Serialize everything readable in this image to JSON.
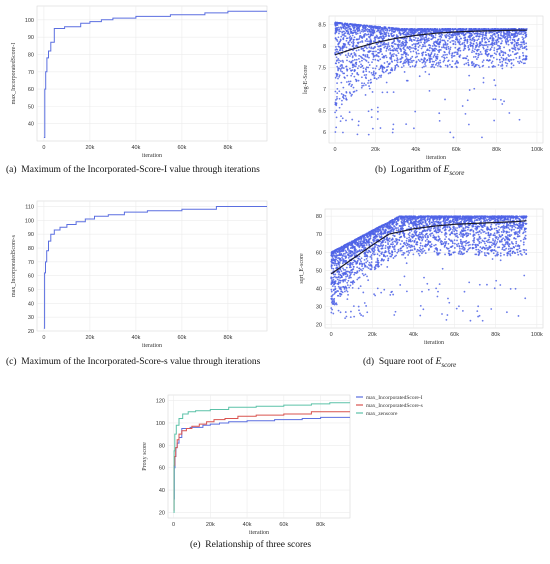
{
  "panels": [
    {
      "id": "a",
      "caption_prefix": "(a)",
      "caption_text": "Maximum of the Incorporated-Score-I value through iterations",
      "chart_data": {
        "type": "line",
        "xlabel": "iteration",
        "ylabel": "max_IncorporatedScore-I",
        "xlim": [
          -3000,
          97000
        ],
        "ylim": [
          30,
          108
        ],
        "x_ticks": [
          0,
          20000,
          40000,
          60000,
          80000
        ],
        "x_tick_labels": [
          "0",
          "20k",
          "40k",
          "60k",
          "80k"
        ],
        "y_ticks": [
          40,
          50,
          60,
          70,
          80,
          90,
          100
        ],
        "grid": true,
        "series": [
          {
            "color": "#5b6fe0",
            "step": true,
            "x": [
              0,
              400,
              800,
              1300,
              2000,
              3000,
              4500,
              6500,
              9000,
              12000,
              16000,
              20000,
              25000,
              30000,
              40000,
              55000,
              70000,
              80000,
              95000
            ],
            "y": [
              32,
              60,
              70,
              78,
              82,
              87,
              95,
              95,
              96,
              96,
              98,
              99,
              100,
              101,
              102,
              103,
              104,
              105,
              105
            ]
          }
        ]
      }
    },
    {
      "id": "b",
      "caption_prefix": "(b)",
      "caption_text": "Logarithm of",
      "caption_math": "E",
      "caption_sub": "score",
      "chart_data": {
        "type": "scatter",
        "xlabel": "iteration",
        "ylabel": "log-E-Score",
        "xlim": [
          -3000,
          103000
        ],
        "ylim": [
          5.75,
          8.7
        ],
        "x_ticks": [
          0,
          20000,
          40000,
          60000,
          80000,
          100000
        ],
        "x_tick_labels": [
          "0",
          "20k",
          "40k",
          "60k",
          "80k",
          "100k"
        ],
        "y_ticks": [
          6,
          6.5,
          7,
          7.5,
          8,
          8.5
        ],
        "grid": true,
        "point_color": "#4f63e6",
        "point_count": 2600,
        "band": {
          "x_max": 95000,
          "top_start": 8.55,
          "top_end": 8.4,
          "bottom_start": 6.2,
          "bottom_end": 7.5,
          "y_floor": 5.85
        },
        "trend": {
          "color": "#1a1a2e",
          "x": [
            0,
            10000,
            20000,
            30000,
            40000,
            50000,
            60000,
            70000,
            80000,
            90000,
            95000
          ],
          "y": [
            7.8,
            7.95,
            8.08,
            8.18,
            8.25,
            8.3,
            8.33,
            8.35,
            8.36,
            8.37,
            8.37
          ]
        }
      }
    },
    {
      "id": "c",
      "caption_prefix": "(c)",
      "caption_text": "Maximum of the Incorporated-Score-s value through iterations",
      "chart_data": {
        "type": "line",
        "xlabel": "iteration",
        "ylabel": "max_IncorporatedScore-s",
        "xlim": [
          -3000,
          97000
        ],
        "ylim": [
          20,
          114
        ],
        "x_ticks": [
          0,
          20000,
          40000,
          60000,
          80000
        ],
        "x_tick_labels": [
          "0",
          "20k",
          "40k",
          "60k",
          "80k"
        ],
        "y_ticks": [
          20,
          30,
          40,
          50,
          60,
          70,
          80,
          90,
          100,
          110
        ],
        "grid": true,
        "series": [
          {
            "color": "#5b6fe0",
            "step": true,
            "x": [
              0,
              300,
              700,
              1200,
              2000,
              3000,
              4500,
              7000,
              10000,
              14000,
              18000,
              22000,
              28000,
              35000,
              45000,
              60000,
              75000,
              95000
            ],
            "y": [
              22,
              62,
              70,
              78,
              85,
              90,
              93,
              95,
              97,
              99,
              101,
              103,
              104,
              106,
              107,
              108,
              110,
              110
            ]
          }
        ]
      }
    },
    {
      "id": "d",
      "caption_prefix": "(d)",
      "caption_text": "Square root of",
      "caption_math": "E",
      "caption_sub": "score",
      "chart_data": {
        "type": "scatter",
        "xlabel": "iteration",
        "ylabel": "sqrt_E-score",
        "xlim": [
          -3000,
          103000
        ],
        "ylim": [
          18,
          84
        ],
        "x_ticks": [
          0,
          20000,
          40000,
          60000,
          80000,
          100000
        ],
        "x_tick_labels": [
          "0",
          "20k",
          "40k",
          "60k",
          "80k",
          "100k"
        ],
        "y_ticks": [
          20,
          30,
          40,
          50,
          60,
          70,
          80
        ],
        "grid": true,
        "point_color": "#4f63e6",
        "point_count": 3200,
        "band": {
          "x_max": 95000,
          "top_start": 60,
          "top_end": 80,
          "bottom_start": 22,
          "bottom_end": 58,
          "y_floor": 22
        },
        "trend": {
          "color": "#1a1a2e",
          "x": [
            0,
            10000,
            20000,
            28000,
            40000,
            50000,
            60000,
            70000,
            80000,
            90000,
            95000
          ],
          "y": [
            48,
            56,
            64,
            70,
            73,
            74.5,
            75.5,
            76,
            76.5,
            77,
            77.5
          ]
        }
      }
    },
    {
      "id": "e",
      "caption_prefix": "(e)",
      "caption_text": "Relationship of three scores",
      "chart_data": {
        "type": "line",
        "xlabel": "iteration",
        "ylabel": "Proxy score",
        "xlim": [
          -3000,
          96000
        ],
        "ylim": [
          15,
          125
        ],
        "x_ticks": [
          0,
          20000,
          40000,
          60000,
          80000
        ],
        "x_tick_labels": [
          "0",
          "20k",
          "40k",
          "60k",
          "80k"
        ],
        "y_ticks": [
          20,
          40,
          60,
          80,
          100,
          120
        ],
        "grid": true,
        "legend": "top-right",
        "series": [
          {
            "name": "max_IncorporatedScore-I",
            "color": "#5b6fe0",
            "step": true,
            "x": [
              0,
              400,
              800,
              1300,
              2000,
              3000,
              4500,
              6500,
              9000,
              12000,
              16000,
              20000,
              25000,
              30000,
              40000,
              55000,
              70000,
              80000,
              95000
            ],
            "y": [
              32,
              60,
              70,
              78,
              82,
              87,
              95,
              95,
              96,
              96,
              98,
              99,
              100,
              101,
              102,
              103,
              104,
              105,
              105
            ]
          },
          {
            "name": "max_IncorporatedScore-s",
            "color": "#d9534f",
            "step": true,
            "x": [
              0,
              300,
              700,
              1200,
              2000,
              3000,
              4500,
              7000,
              10000,
              14000,
              18000,
              22000,
              28000,
              35000,
              45000,
              60000,
              75000,
              95000
            ],
            "y": [
              22,
              62,
              70,
              78,
              85,
              90,
              93,
              95,
              97,
              99,
              101,
              103,
              104,
              106,
              107,
              108,
              110,
              110
            ]
          },
          {
            "name": "max_zenscore",
            "color": "#5cc2a8",
            "step": true,
            "x": [
              0,
              300,
              700,
              1500,
              3000,
              5000,
              8000,
              12000,
              20000,
              30000,
              45000,
              60000,
              75000,
              85000,
              95000
            ],
            "y": [
              20,
              75,
              90,
              98,
              104,
              108,
              110,
              111,
              112,
              114,
              115,
              116,
              117,
              118,
              118
            ]
          }
        ]
      }
    }
  ]
}
